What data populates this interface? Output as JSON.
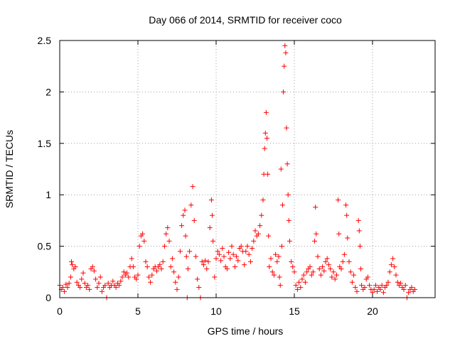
{
  "colors": {
    "series": "#ff0000",
    "grid": "#a0a0a0",
    "axis": "#000000"
  },
  "chart_data": {
    "type": "scatter",
    "title": "Day 066 of 2014, SRMTID for receiver coco",
    "xlabel": "GPS time / hours",
    "ylabel": "SRMTID / TECUs",
    "xlim": [
      0,
      24
    ],
    "ylim": [
      0,
      2.5
    ],
    "xticks": [
      0,
      5,
      10,
      15,
      20
    ],
    "yticks": [
      0,
      0.5,
      1,
      1.5,
      2,
      2.5
    ],
    "ytick_labels": [
      "0",
      "0.5",
      "1",
      "1.5",
      "2",
      "2.5"
    ],
    "marker": "plus",
    "grid": true,
    "series": [
      {
        "name": "SRMTID",
        "points": [
          [
            0.0,
            0.12
          ],
          [
            0.1,
            0.08
          ],
          [
            0.2,
            0.1
          ],
          [
            0.3,
            0.06
          ],
          [
            0.4,
            0.13
          ],
          [
            0.5,
            0.1
          ],
          [
            0.6,
            0.14
          ],
          [
            0.7,
            0.2
          ],
          [
            0.75,
            0.35
          ],
          [
            0.8,
            0.32
          ],
          [
            0.9,
            0.28
          ],
          [
            1.0,
            0.3
          ],
          [
            1.1,
            0.15
          ],
          [
            1.2,
            0.12
          ],
          [
            1.3,
            0.1
          ],
          [
            1.4,
            0.18
          ],
          [
            1.5,
            0.24
          ],
          [
            1.6,
            0.14
          ],
          [
            1.7,
            0.1
          ],
          [
            1.8,
            0.12
          ],
          [
            1.9,
            0.08
          ],
          [
            2.0,
            0.28
          ],
          [
            2.1,
            0.3
          ],
          [
            2.2,
            0.26
          ],
          [
            2.3,
            0.18
          ],
          [
            2.4,
            0.1
          ],
          [
            2.5,
            0.14
          ],
          [
            2.6,
            0.2
          ],
          [
            2.7,
            0.06
          ],
          [
            2.8,
            0.1
          ],
          [
            2.9,
            0.12
          ],
          [
            3.0,
            0.0
          ],
          [
            3.1,
            0.14
          ],
          [
            3.2,
            0.1
          ],
          [
            3.3,
            0.12
          ],
          [
            3.4,
            0.16
          ],
          [
            3.5,
            0.12
          ],
          [
            3.6,
            0.1
          ],
          [
            3.7,
            0.14
          ],
          [
            3.8,
            0.12
          ],
          [
            3.9,
            0.16
          ],
          [
            4.0,
            0.2
          ],
          [
            4.1,
            0.25
          ],
          [
            4.2,
            0.22
          ],
          [
            4.3,
            0.24
          ],
          [
            4.4,
            0.2
          ],
          [
            4.5,
            0.3
          ],
          [
            4.6,
            0.38
          ],
          [
            4.7,
            0.3
          ],
          [
            4.8,
            0.2
          ],
          [
            4.9,
            0.18
          ],
          [
            5.0,
            0.22
          ],
          [
            5.1,
            0.5
          ],
          [
            5.2,
            0.6
          ],
          [
            5.3,
            0.62
          ],
          [
            5.4,
            0.55
          ],
          [
            5.5,
            0.35
          ],
          [
            5.6,
            0.3
          ],
          [
            5.7,
            0.2
          ],
          [
            5.8,
            0.15
          ],
          [
            5.9,
            0.22
          ],
          [
            6.0,
            0.28
          ],
          [
            6.1,
            0.3
          ],
          [
            6.2,
            0.26
          ],
          [
            6.3,
            0.3
          ],
          [
            6.4,
            0.32
          ],
          [
            6.5,
            0.28
          ],
          [
            6.6,
            0.35
          ],
          [
            6.7,
            0.5
          ],
          [
            6.8,
            0.62
          ],
          [
            6.9,
            0.68
          ],
          [
            7.0,
            0.55
          ],
          [
            7.1,
            0.3
          ],
          [
            7.2,
            0.38
          ],
          [
            7.3,
            0.25
          ],
          [
            7.4,
            0.15
          ],
          [
            7.5,
            0.08
          ],
          [
            7.6,
            0.2
          ],
          [
            7.7,
            0.45
          ],
          [
            7.8,
            0.7
          ],
          [
            7.9,
            0.8
          ],
          [
            8.0,
            0.85
          ],
          [
            8.05,
            0.6
          ],
          [
            8.1,
            0.4
          ],
          [
            8.15,
            0.0
          ],
          [
            8.2,
            0.28
          ],
          [
            8.3,
            0.45
          ],
          [
            8.4,
            0.9
          ],
          [
            8.5,
            1.08
          ],
          [
            8.6,
            0.75
          ],
          [
            8.7,
            0.4
          ],
          [
            8.8,
            0.18
          ],
          [
            8.9,
            0.1
          ],
          [
            9.0,
            0.0
          ],
          [
            9.1,
            0.35
          ],
          [
            9.2,
            0.32
          ],
          [
            9.3,
            0.36
          ],
          [
            9.4,
            0.28
          ],
          [
            9.5,
            0.35
          ],
          [
            9.6,
            0.68
          ],
          [
            9.7,
            0.95
          ],
          [
            9.75,
            0.8
          ],
          [
            9.8,
            0.55
          ],
          [
            9.9,
            0.2
          ],
          [
            10.0,
            0.38
          ],
          [
            10.1,
            0.45
          ],
          [
            10.2,
            0.42
          ],
          [
            10.3,
            0.36
          ],
          [
            10.4,
            0.48
          ],
          [
            10.5,
            0.4
          ],
          [
            10.6,
            0.3
          ],
          [
            10.7,
            0.28
          ],
          [
            10.8,
            0.44
          ],
          [
            10.9,
            0.38
          ],
          [
            11.0,
            0.5
          ],
          [
            11.1,
            0.42
          ],
          [
            11.2,
            0.3
          ],
          [
            11.3,
            0.4
          ],
          [
            11.4,
            0.36
          ],
          [
            11.5,
            0.48
          ],
          [
            11.6,
            0.5
          ],
          [
            11.7,
            0.45
          ],
          [
            11.8,
            0.32
          ],
          [
            11.9,
            0.45
          ],
          [
            12.0,
            0.5
          ],
          [
            12.1,
            0.42
          ],
          [
            12.2,
            0.35
          ],
          [
            12.3,
            0.48
          ],
          [
            12.4,
            0.55
          ],
          [
            12.5,
            0.65
          ],
          [
            12.6,
            0.6
          ],
          [
            12.7,
            0.62
          ],
          [
            12.8,
            0.7
          ],
          [
            12.9,
            0.8
          ],
          [
            13.0,
            0.95
          ],
          [
            13.05,
            1.2
          ],
          [
            13.1,
            1.45
          ],
          [
            13.15,
            1.6
          ],
          [
            13.2,
            1.8
          ],
          [
            13.25,
            1.55
          ],
          [
            13.3,
            1.2
          ],
          [
            13.35,
            0.6
          ],
          [
            13.4,
            0.3
          ],
          [
            13.5,
            0.38
          ],
          [
            13.6,
            0.25
          ],
          [
            13.7,
            0.22
          ],
          [
            13.8,
            0.42
          ],
          [
            13.9,
            0.35
          ],
          [
            14.0,
            0.4
          ],
          [
            14.05,
            0.2
          ],
          [
            14.1,
            0.12
          ],
          [
            14.15,
            1.25
          ],
          [
            14.2,
            0.5
          ],
          [
            14.25,
            0.9
          ],
          [
            14.3,
            2.0
          ],
          [
            14.35,
            2.25
          ],
          [
            14.4,
            2.45
          ],
          [
            14.45,
            2.38
          ],
          [
            14.5,
            1.65
          ],
          [
            14.55,
            1.3
          ],
          [
            14.6,
            1.0
          ],
          [
            14.65,
            0.75
          ],
          [
            14.7,
            0.55
          ],
          [
            14.8,
            0.35
          ],
          [
            14.9,
            0.3
          ],
          [
            15.0,
            0.25
          ],
          [
            15.1,
            0.12
          ],
          [
            15.2,
            0.08
          ],
          [
            15.3,
            0.15
          ],
          [
            15.4,
            0.1
          ],
          [
            15.5,
            0.18
          ],
          [
            15.6,
            0.22
          ],
          [
            15.7,
            0.15
          ],
          [
            15.8,
            0.25
          ],
          [
            15.9,
            0.28
          ],
          [
            16.0,
            0.3
          ],
          [
            16.1,
            0.22
          ],
          [
            16.2,
            0.25
          ],
          [
            16.3,
            0.55
          ],
          [
            16.35,
            0.88
          ],
          [
            16.4,
            0.62
          ],
          [
            16.5,
            0.4
          ],
          [
            16.6,
            0.28
          ],
          [
            16.7,
            0.22
          ],
          [
            16.8,
            0.3
          ],
          [
            16.9,
            0.26
          ],
          [
            17.0,
            0.35
          ],
          [
            17.1,
            0.38
          ],
          [
            17.2,
            0.32
          ],
          [
            17.3,
            0.28
          ],
          [
            17.4,
            0.2
          ],
          [
            17.5,
            0.25
          ],
          [
            17.6,
            0.18
          ],
          [
            17.7,
            0.22
          ],
          [
            17.8,
            0.95
          ],
          [
            17.85,
            0.62
          ],
          [
            17.9,
            0.3
          ],
          [
            18.0,
            0.28
          ],
          [
            18.1,
            0.35
          ],
          [
            18.2,
            0.42
          ],
          [
            18.3,
            0.9
          ],
          [
            18.35,
            0.8
          ],
          [
            18.4,
            0.58
          ],
          [
            18.5,
            0.35
          ],
          [
            18.6,
            0.25
          ],
          [
            18.7,
            0.15
          ],
          [
            18.8,
            0.22
          ],
          [
            18.9,
            0.1
          ],
          [
            19.0,
            0.06
          ],
          [
            19.1,
            0.75
          ],
          [
            19.15,
            0.65
          ],
          [
            19.2,
            0.5
          ],
          [
            19.25,
            0.28
          ],
          [
            19.3,
            0.12
          ],
          [
            19.4,
            0.08
          ],
          [
            19.5,
            0.1
          ],
          [
            19.6,
            0.18
          ],
          [
            19.7,
            0.2
          ],
          [
            19.8,
            0.12
          ],
          [
            19.9,
            0.08
          ],
          [
            20.0,
            0.05
          ],
          [
            20.1,
            0.08
          ],
          [
            20.2,
            0.12
          ],
          [
            20.3,
            0.06
          ],
          [
            20.4,
            0.1
          ],
          [
            20.5,
            0.08
          ],
          [
            20.6,
            0.12
          ],
          [
            20.7,
            0.05
          ],
          [
            20.8,
            0.1
          ],
          [
            20.9,
            0.12
          ],
          [
            21.0,
            0.15
          ],
          [
            21.1,
            0.25
          ],
          [
            21.2,
            0.32
          ],
          [
            21.3,
            0.38
          ],
          [
            21.4,
            0.3
          ],
          [
            21.5,
            0.22
          ],
          [
            21.6,
            0.15
          ],
          [
            21.7,
            0.12
          ],
          [
            21.8,
            0.14
          ],
          [
            21.9,
            0.1
          ],
          [
            22.0,
            0.08
          ],
          [
            22.1,
            0.12
          ],
          [
            22.2,
            0.0
          ],
          [
            22.3,
            0.05
          ],
          [
            22.4,
            0.08
          ],
          [
            22.5,
            0.1
          ],
          [
            22.6,
            0.06
          ],
          [
            22.7,
            0.08
          ]
        ]
      }
    ]
  }
}
